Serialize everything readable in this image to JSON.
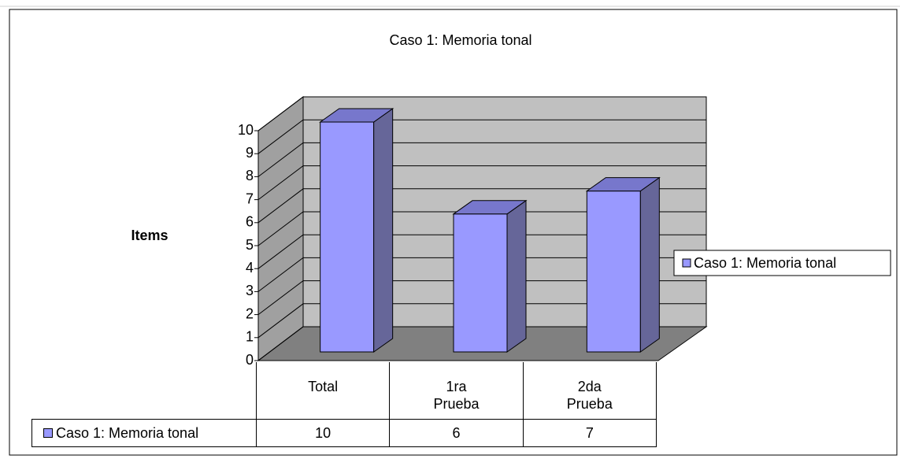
{
  "chart_data": {
    "type": "bar3d",
    "title": "Caso 1: Memoria tonal",
    "y_label": "Items",
    "categories": [
      "Total",
      "1ra Prueba",
      "2da Prueba"
    ],
    "series": [
      {
        "name": "Caso 1: Memoria tonal",
        "color": "#9999ff",
        "values": [
          10,
          6,
          7
        ]
      }
    ],
    "ylim": [
      0,
      10
    ],
    "yticks": [
      0,
      1,
      2,
      3,
      4,
      5,
      6,
      7,
      8,
      9,
      10
    ],
    "grid": true,
    "legend": "right",
    "data_table": true
  }
}
